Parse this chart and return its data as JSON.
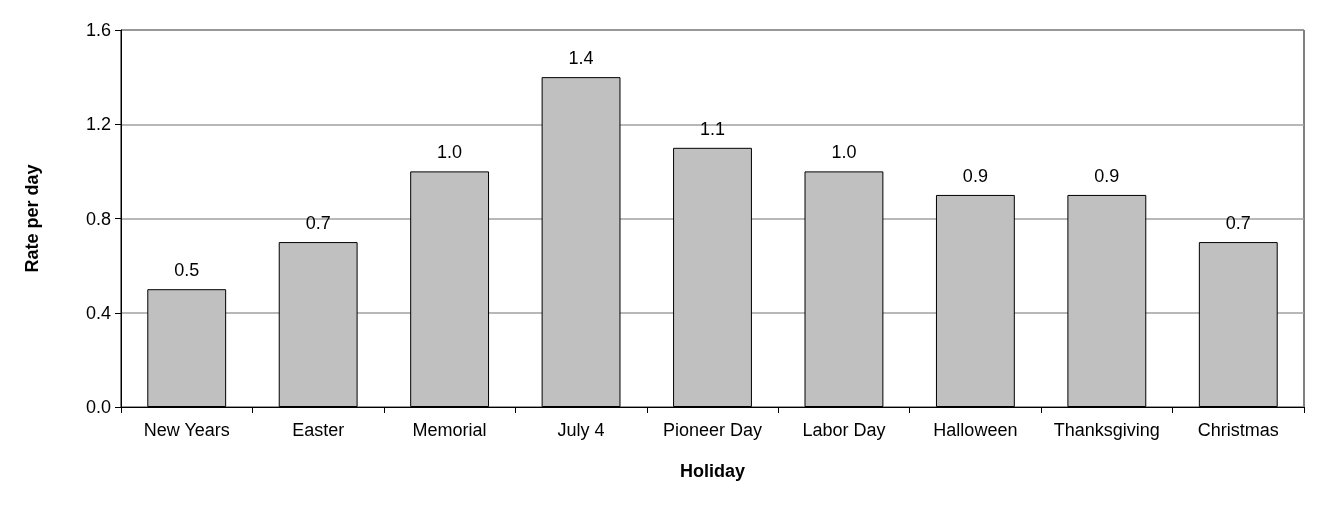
{
  "chart_data": {
    "type": "bar",
    "xlabel": "Holiday",
    "ylabel": "Rate per day",
    "categories": [
      "New Years",
      "Easter",
      "Memorial",
      "July 4",
      "Pioneer Day",
      "Labor Day",
      "Halloween",
      "Thanksgiving",
      "Christmas"
    ],
    "values": [
      0.5,
      0.7,
      1.0,
      1.4,
      1.1,
      1.0,
      0.9,
      0.9,
      0.7
    ],
    "value_labels": [
      "0.5",
      "0.7",
      "1.0",
      "1.4",
      "1.1",
      "1.0",
      "0.9",
      "0.9",
      "0.7"
    ],
    "color": "#c0c0c0",
    "ylim": [
      0,
      1.6
    ],
    "yticks": [
      {
        "value": 0,
        "label": "0.0"
      },
      {
        "value": 0.4,
        "label": "0.4"
      },
      {
        "value": 0.8,
        "label": "0.8"
      },
      {
        "value": 1.2,
        "label": "1.2"
      },
      {
        "value": 1.6,
        "label": "1.6"
      }
    ],
    "grid": "y"
  }
}
